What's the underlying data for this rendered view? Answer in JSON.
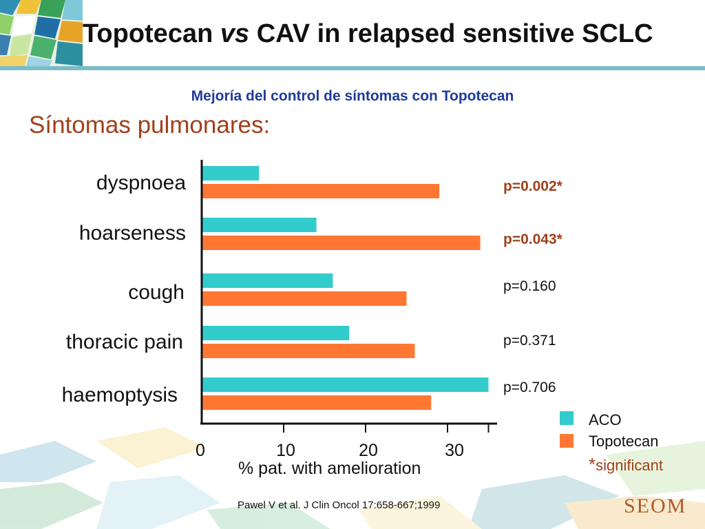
{
  "slide": {
    "title_part1": "Topotecan ",
    "title_vs": "vs",
    "title_part2": " CAV in relapsed sensitive SCLC",
    "subtitle": "Mejoría del control de síntomas con Topotecan",
    "section_heading": "Síntomas pulmonares:",
    "citation": "Pawel V et al. J Clin Oncol 17:658-667;1999",
    "logo_text": "SEOM"
  },
  "chart_data": {
    "type": "bar",
    "orientation": "horizontal",
    "categories": [
      "dyspnoea",
      "hoarseness",
      "cough",
      "thoracic pain",
      "haemoptysis"
    ],
    "series": [
      {
        "name": "ACO",
        "color": "#33cccc",
        "values": [
          7,
          14,
          16,
          18,
          35
        ]
      },
      {
        "name": "Topotecan",
        "color": "#ff7733",
        "values": [
          29,
          34,
          25,
          26,
          28
        ]
      }
    ],
    "p_values": [
      {
        "text": "p=0.002*",
        "significant": true
      },
      {
        "text": "p=0.043*",
        "significant": true
      },
      {
        "text": "p=0.160",
        "significant": false
      },
      {
        "text": "p=0.371",
        "significant": false
      },
      {
        "text": "p=0.706",
        "significant": false
      }
    ],
    "xlabel": "% pat. with amelioration",
    "xticks": [
      "0",
      "10",
      "20",
      "30"
    ],
    "xlim": [
      0,
      35
    ],
    "legend": {
      "placement": "bottom-right",
      "items": [
        "ACO",
        "Topotecan"
      ],
      "note_star": "*",
      "note_text": "significant"
    }
  }
}
